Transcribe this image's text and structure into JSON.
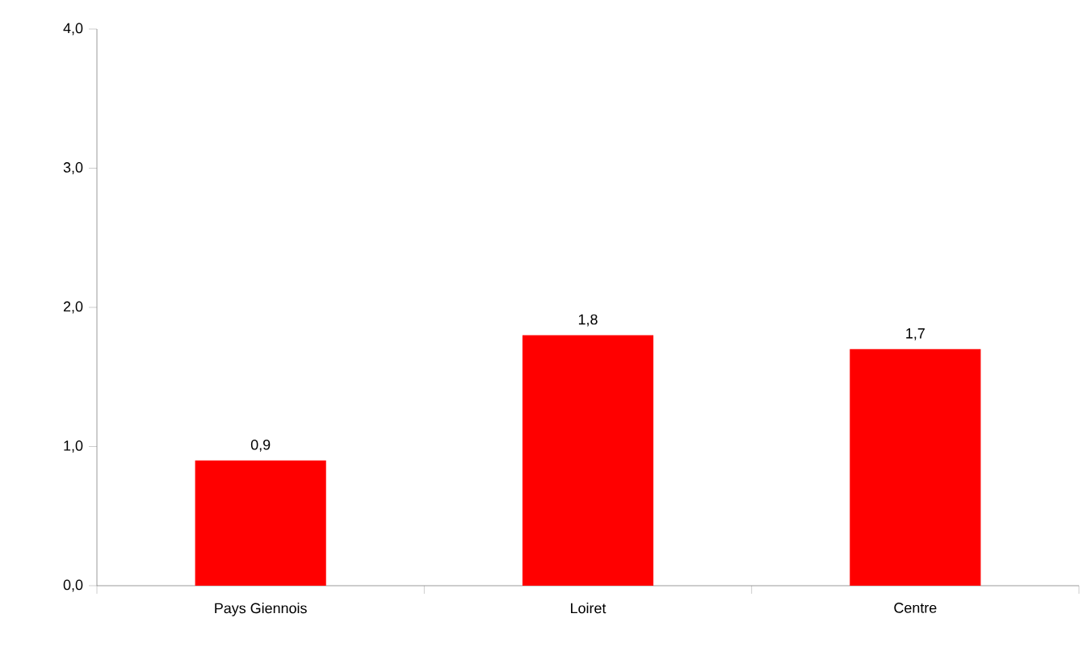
{
  "chart_data": {
    "type": "bar",
    "categories": [
      "Pays Giennois",
      "Loiret",
      "Centre"
    ],
    "values": [
      0.9,
      1.8,
      1.7
    ],
    "value_labels": [
      "0,9",
      "1,8",
      "1,7"
    ],
    "color": "#ff0000",
    "ylim": [
      0,
      4
    ],
    "yticks": [
      {
        "value": 0,
        "label": "0,0"
      },
      {
        "value": 1,
        "label": "1,0"
      },
      {
        "value": 2,
        "label": "2,0"
      },
      {
        "value": 3,
        "label": "3,0"
      },
      {
        "value": 4,
        "label": "4,0"
      }
    ],
    "grid": false
  }
}
